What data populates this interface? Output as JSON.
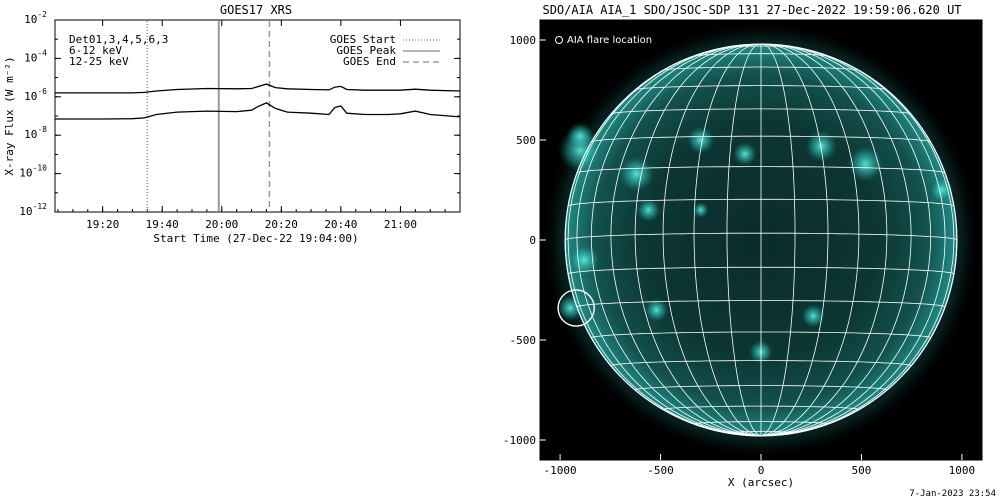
{
  "chart_data": [
    {
      "type": "line",
      "title": "GOES17 XRS",
      "xlabel": "Start Time (27-Dec-22 19:04:00)",
      "ylabel": "X-ray Flux (W m⁻²)",
      "y_scale": "log",
      "xlim": [
        "19:04",
        "21:20"
      ],
      "ylim": [
        1e-12,
        0.01
      ],
      "x_ticks": [
        "19:20",
        "19:40",
        "20:00",
        "20:20",
        "20:40",
        "21:00"
      ],
      "y_ticks": [
        {
          "base": "10",
          "exp": "-2"
        },
        {
          "base": "10",
          "exp": "-4"
        },
        {
          "base": "10",
          "exp": "-6"
        },
        {
          "base": "10",
          "exp": "-8"
        },
        {
          "base": "10",
          "exp": "-10"
        },
        {
          "base": "10",
          "exp": "-12"
        }
      ],
      "annotations": {
        "detectors": "Det01,3,4,5,6,3",
        "channels": [
          {
            "label": "6-12 keV",
            "color": "#e000e0"
          },
          {
            "label": "12-25 keV",
            "color": "#00cc00"
          }
        ]
      },
      "legend": {
        "placement": "top-right",
        "entries": [
          {
            "label": "GOES Start",
            "style": "dotted",
            "time": "19:35"
          },
          {
            "label": "GOES Peak",
            "style": "solid",
            "time": "19:59"
          },
          {
            "label": "GOES End",
            "style": "dashed",
            "time": "20:16"
          }
        ]
      },
      "series": [
        {
          "x": [
            "19:04",
            "19:20",
            "19:30",
            "19:34",
            "19:38",
            "19:45",
            "19:55",
            "20:05",
            "20:10",
            "20:12",
            "20:15",
            "20:18",
            "20:22",
            "20:30",
            "20:36",
            "20:38",
            "20:40",
            "20:42",
            "20:48",
            "20:56",
            "21:00",
            "21:05",
            "21:10",
            "21:20"
          ],
          "values": [
            1.6e-06,
            1.6e-06,
            1.6e-06,
            1.7e-06,
            2e-06,
            2.4e-06,
            2.7e-06,
            2.6e-06,
            2.7e-06,
            3.3e-06,
            4.6e-06,
            3e-06,
            2.6e-06,
            2.4e-06,
            2.3e-06,
            3.2e-06,
            3.5e-06,
            2.4e-06,
            2.2e-06,
            2.2e-06,
            2.2e-06,
            2.5e-06,
            2.2e-06,
            2e-06
          ]
        },
        {
          "x": [
            "19:04",
            "19:20",
            "19:30",
            "19:34",
            "19:38",
            "19:45",
            "19:55",
            "20:05",
            "20:10",
            "20:12",
            "20:15",
            "20:18",
            "20:22",
            "20:30",
            "20:36",
            "20:38",
            "20:40",
            "20:42",
            "20:48",
            "20:56",
            "21:00",
            "21:05",
            "21:10",
            "21:20"
          ],
          "values": [
            7e-08,
            7e-08,
            7.2e-08,
            8e-08,
            1.2e-07,
            1.6e-07,
            1.8e-07,
            1.7e-07,
            2e-07,
            3e-07,
            4.8e-07,
            2.5e-07,
            1.6e-07,
            1.4e-07,
            1.2e-07,
            2.8e-07,
            3.3e-07,
            1.4e-07,
            1.2e-07,
            1.2e-07,
            1.3e-07,
            1.8e-07,
            1.2e-07,
            9e-08
          ]
        }
      ]
    },
    {
      "type": "heatmap",
      "title": "SDO/AIA AIA_1 SDO/JSOC-SDP 131 27-Dec-2022 19:59:06.620 UT",
      "xlabel": "X (arcsec)",
      "ylabel": "",
      "x_ticks": [
        "-1000",
        "-500",
        "0",
        "500",
        "1000"
      ],
      "y_ticks": [
        "1000",
        "500",
        "0",
        "-500",
        "-1000"
      ],
      "xlim": [
        -1100,
        1100
      ],
      "ylim": [
        -1100,
        1100
      ],
      "grid": true,
      "colormap": "teal",
      "legend_text": "AIA flare location",
      "flare_location": {
        "x": -920,
        "y": -340,
        "radius_arcsec": 90
      },
      "disk_radius_arcsec": 975
    }
  ],
  "footer": {
    "date": "7-Jan-2023 23:54"
  },
  "colors": {
    "background": "#ffffff",
    "axis": "#000000",
    "sun_image_bg": "#000000",
    "grid": "#ffffff",
    "sun_glow": "#2ee0d2"
  }
}
